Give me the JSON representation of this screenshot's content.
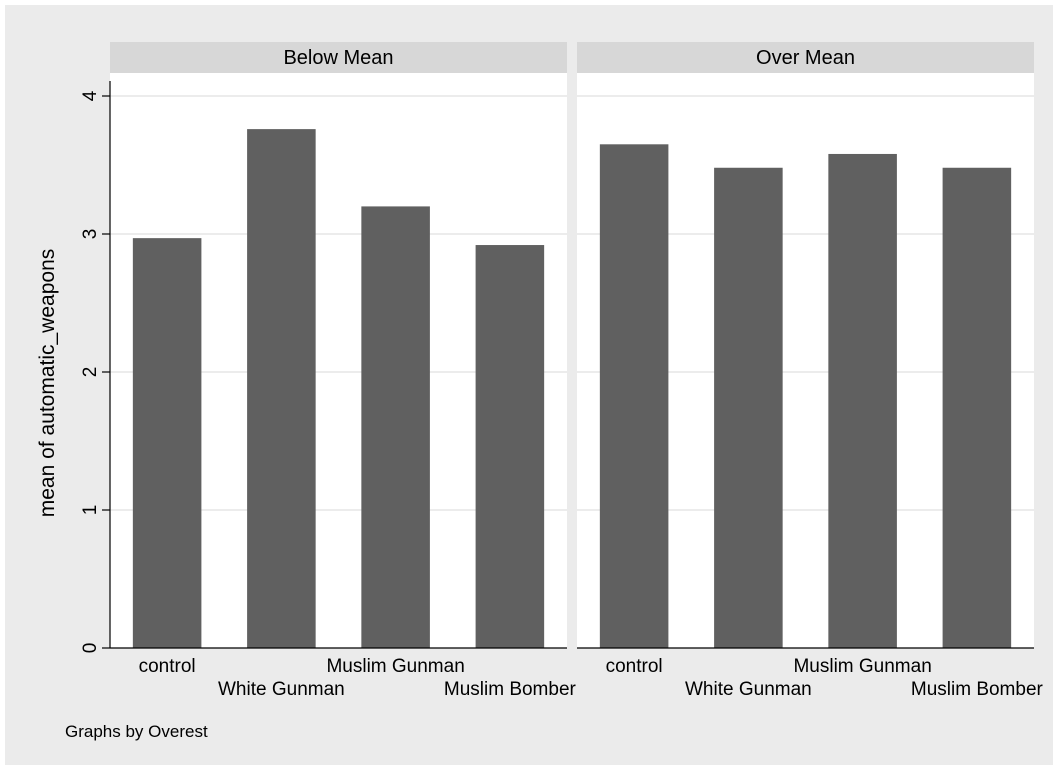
{
  "chart_data": {
    "type": "bar",
    "ylabel": "mean of automatic_weapons",
    "ylim": [
      0,
      4
    ],
    "yticks": [
      0,
      1,
      2,
      3,
      4
    ],
    "grid": true,
    "bar_color": "#606060",
    "background": "#ebebeb",
    "strip_color": "#d7d7d7",
    "categories": [
      "control",
      "White Gunman",
      "Muslim Gunman",
      "Muslim Bomber"
    ],
    "panels": [
      {
        "name": "Below Mean",
        "values": [
          2.97,
          3.76,
          3.2,
          2.92
        ]
      },
      {
        "name": "Over Mean",
        "values": [
          3.65,
          3.48,
          3.58,
          3.48
        ]
      }
    ],
    "note": "Graphs by Overest"
  }
}
